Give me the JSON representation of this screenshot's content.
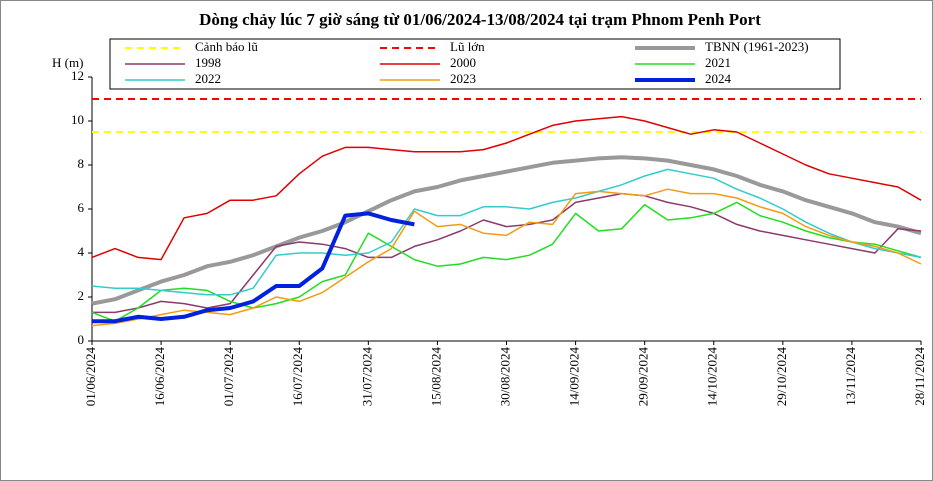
{
  "chart_data": {
    "type": "line",
    "title": "Dòng chảy lúc 7 giờ sáng từ 01/06/2024-13/08/2024 tại trạm Phnom Penh Port",
    "y_label": "H (m)",
    "x": [
      "01/06/2024",
      "06/06/2024",
      "11/06/2024",
      "16/06/2024",
      "21/06/2024",
      "26/06/2024",
      "01/07/2024",
      "06/07/2024",
      "11/07/2024",
      "16/07/2024",
      "21/07/2024",
      "26/07/2024",
      "31/07/2024",
      "05/08/2024",
      "10/08/2024",
      "15/08/2024",
      "20/08/2024",
      "25/08/2024",
      "30/08/2024",
      "04/09/2024",
      "09/09/2024",
      "14/09/2024",
      "19/09/2024",
      "24/09/2024",
      "29/09/2024",
      "04/10/2024",
      "09/10/2024",
      "14/10/2024",
      "19/10/2024",
      "24/10/2024",
      "29/10/2024",
      "03/11/2024",
      "08/11/2024",
      "13/11/2024",
      "18/11/2024",
      "23/11/2024",
      "28/11/2024"
    ],
    "xlim": [
      "01/06/2024",
      "28/11/2024"
    ],
    "xticks": [
      "01/06/2024",
      "16/06/2024",
      "01/07/2024",
      "16/07/2024",
      "31/07/2024",
      "15/08/2024",
      "30/08/2024",
      "14/09/2024",
      "29/09/2024",
      "14/10/2024",
      "29/10/2024",
      "13/11/2024",
      "28/11/2024"
    ],
    "ylim": [
      0,
      12
    ],
    "yticks": [
      0,
      2,
      4,
      6,
      8,
      10,
      12
    ],
    "hlines": [
      {
        "name": "Cảnh báo lũ",
        "color": "#ffff00",
        "value": 9.5
      },
      {
        "name": "Lũ lớn",
        "color": "#ff0000",
        "value": 11
      }
    ],
    "series": [
      {
        "name": "TBNN (1961-2023)",
        "color": "#999999",
        "width": 4,
        "values": [
          1.7,
          1.9,
          2.3,
          2.7,
          3.0,
          3.4,
          3.6,
          3.9,
          4.3,
          4.7,
          5.0,
          5.4,
          5.9,
          6.4,
          6.8,
          7.0,
          7.3,
          7.5,
          7.7,
          7.9,
          8.1,
          8.2,
          8.3,
          8.35,
          8.3,
          8.2,
          8.0,
          7.8,
          7.5,
          7.1,
          6.8,
          6.4,
          6.1,
          5.8,
          5.4,
          5.2,
          4.9
        ]
      },
      {
        "name": "1998",
        "color": "#8b3a6b",
        "width": 1.5,
        "values": [
          1.3,
          1.3,
          1.5,
          1.8,
          1.7,
          1.5,
          1.7,
          3.0,
          4.3,
          4.5,
          4.4,
          4.2,
          3.8,
          3.8,
          4.3,
          4.6,
          5.0,
          5.5,
          5.2,
          5.3,
          5.5,
          6.3,
          6.5,
          6.7,
          6.6,
          6.3,
          6.1,
          5.8,
          5.3,
          5.0,
          4.8,
          4.6,
          4.4,
          4.2,
          4.0,
          5.1,
          5.0
        ]
      },
      {
        "name": "2000",
        "color": "#e00000",
        "width": 1.5,
        "values": [
          3.8,
          4.2,
          3.8,
          3.7,
          5.6,
          5.8,
          6.4,
          6.4,
          6.6,
          7.6,
          8.4,
          8.8,
          8.8,
          8.7,
          8.6,
          8.6,
          8.6,
          8.7,
          9.0,
          9.4,
          9.8,
          10.0,
          10.1,
          10.2,
          10.0,
          9.7,
          9.4,
          9.6,
          9.5,
          9.0,
          8.5,
          8.0,
          7.6,
          7.4,
          7.2,
          7.0,
          6.4
        ]
      },
      {
        "name": "2021",
        "color": "#22dd22",
        "width": 1.5,
        "values": [
          1.3,
          0.9,
          1.5,
          2.3,
          2.4,
          2.3,
          1.8,
          1.5,
          1.7,
          2.0,
          2.7,
          3.0,
          4.9,
          4.3,
          3.7,
          3.4,
          3.5,
          3.8,
          3.7,
          3.9,
          4.4,
          5.8,
          5.0,
          5.1,
          6.2,
          5.5,
          5.6,
          5.8,
          6.3,
          5.7,
          5.4,
          5.0,
          4.7,
          4.5,
          4.4,
          4.1,
          3.8
        ]
      },
      {
        "name": "2022",
        "color": "#33cccc",
        "width": 1.5,
        "values": [
          2.5,
          2.4,
          2.4,
          2.3,
          2.2,
          2.1,
          2.1,
          2.4,
          3.9,
          4.0,
          4.0,
          3.9,
          4.0,
          4.5,
          6.0,
          5.7,
          5.7,
          6.1,
          6.1,
          6.0,
          6.3,
          6.5,
          6.8,
          7.1,
          7.5,
          7.8,
          7.6,
          7.4,
          6.9,
          6.5,
          6.0,
          5.4,
          4.9,
          4.5,
          4.2,
          4.0,
          3.8
        ]
      },
      {
        "name": "2023",
        "color": "#f39c12",
        "width": 1.5,
        "values": [
          0.7,
          0.8,
          1.0,
          1.2,
          1.4,
          1.3,
          1.2,
          1.5,
          2.0,
          1.8,
          2.2,
          2.9,
          3.6,
          4.2,
          5.9,
          5.2,
          5.3,
          4.9,
          4.8,
          5.4,
          5.3,
          6.7,
          6.8,
          6.7,
          6.6,
          6.9,
          6.7,
          6.7,
          6.5,
          6.1,
          5.8,
          5.2,
          4.8,
          4.5,
          4.3,
          4.0,
          3.5
        ]
      },
      {
        "name": "2024",
        "color": "#0022dd",
        "width": 4,
        "values": [
          0.9,
          0.9,
          1.1,
          1.0,
          1.1,
          1.4,
          1.5,
          1.8,
          2.5,
          2.5,
          3.3,
          5.7,
          5.8,
          5.5,
          5.3,
          null,
          null,
          null,
          null,
          null,
          null,
          null,
          null,
          null,
          null,
          null,
          null,
          null,
          null,
          null,
          null,
          null,
          null,
          null,
          null,
          null,
          null
        ]
      }
    ]
  }
}
